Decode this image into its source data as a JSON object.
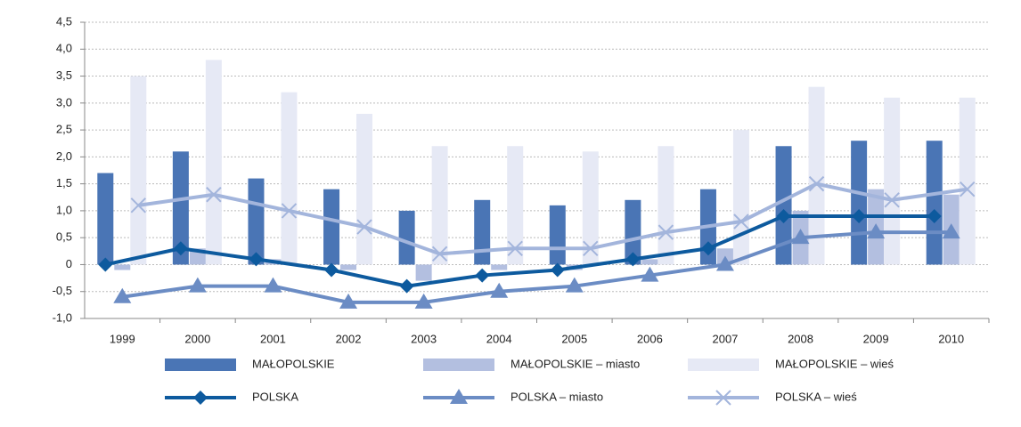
{
  "chart_data": {
    "type": "bar",
    "categories": [
      "1999",
      "2000",
      "2001",
      "2002",
      "2003",
      "2004",
      "2005",
      "2006",
      "2007",
      "2008",
      "2009",
      "2010"
    ],
    "ylim": [
      -1.0,
      4.5
    ],
    "yticks": [
      {
        "value": -1.0,
        "label": "-1,0"
      },
      {
        "value": -0.5,
        "label": "-0,5"
      },
      0,
      {
        "value": 0.5,
        "label": "0,5"
      },
      {
        "value": 1.0,
        "label": "1,0"
      },
      {
        "value": 1.5,
        "label": "1,5"
      },
      {
        "value": 2.0,
        "label": "2,0"
      },
      {
        "value": 2.5,
        "label": "2,5"
      },
      {
        "value": 3.0,
        "label": "3,0"
      },
      {
        "value": 3.5,
        "label": "3,5"
      },
      {
        "value": 4.0,
        "label": "4,0"
      },
      {
        "value": 4.5,
        "label": "4,5"
      }
    ],
    "grid": true,
    "series": [
      {
        "name": "MAŁOPOLSKIE",
        "type": "bar",
        "color": "#4a75b5",
        "values": [
          1.7,
          2.1,
          1.6,
          1.4,
          1.0,
          1.2,
          1.1,
          1.2,
          1.4,
          2.2,
          2.3,
          2.3
        ]
      },
      {
        "name": "MAŁOPOLSKIE – miasto",
        "type": "bar",
        "color": "#b3bfe0",
        "values": [
          -0.1,
          0.3,
          0.1,
          -0.1,
          -0.3,
          -0.1,
          -0.1,
          0.1,
          0.3,
          1.0,
          1.4,
          1.3
        ]
      },
      {
        "name": "MAŁOPOLSKIE – wieś",
        "type": "bar",
        "color": "#e6e9f5",
        "values": [
          3.5,
          3.8,
          3.2,
          2.8,
          2.2,
          2.2,
          2.1,
          2.2,
          2.5,
          3.3,
          3.1,
          3.1
        ]
      },
      {
        "name": "POLSKA",
        "type": "line",
        "marker": "diamond",
        "color": "#0d5a9e",
        "values": [
          0,
          0.3,
          0.1,
          -0.1,
          -0.4,
          -0.2,
          -0.1,
          0.1,
          0.3,
          0.9,
          0.9,
          0.9
        ]
      },
      {
        "name": "POLSKA – miasto",
        "type": "line",
        "marker": "triangle",
        "color": "#6b8cc4",
        "values": [
          -0.6,
          -0.4,
          -0.4,
          -0.7,
          -0.7,
          -0.5,
          -0.4,
          -0.2,
          0,
          0.5,
          0.6,
          0.6
        ]
      },
      {
        "name": "POLSKA – wieś",
        "type": "line",
        "marker": "x",
        "color": "#a3b5dc",
        "values": [
          1.1,
          1.3,
          1.0,
          0.7,
          0.2,
          0.3,
          0.3,
          0.6,
          0.8,
          1.5,
          1.2,
          1.4
        ]
      }
    ]
  }
}
